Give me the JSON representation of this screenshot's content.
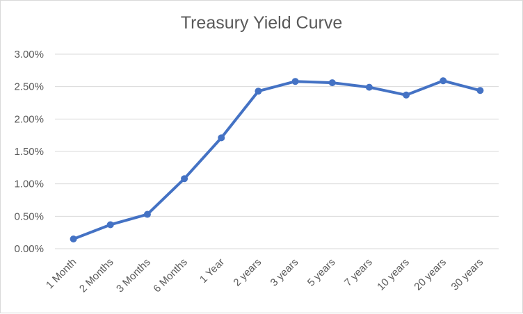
{
  "chart_data": {
    "type": "line",
    "title": "Treasury Yield Curve",
    "xlabel": "",
    "ylabel": "",
    "categories": [
      "1 Month",
      "2 Months",
      "3 Months",
      "6 Months",
      "1 Year",
      "2 years",
      "3 years",
      "5 years",
      "7 years",
      "10 years",
      "20 years",
      "30 years"
    ],
    "series": [
      {
        "values": [
          0.15,
          0.37,
          0.53,
          1.08,
          1.71,
          2.43,
          2.58,
          2.56,
          2.49,
          2.37,
          2.59,
          2.44
        ]
      }
    ],
    "ylim": [
      0,
      3
    ],
    "yticks": [
      "0.00%",
      "0.50%",
      "1.00%",
      "1.50%",
      "2.00%",
      "2.50%",
      "3.00%"
    ],
    "grid": "horizontal",
    "legend": "none",
    "colors": {
      "line": "#4472c4",
      "grid": "#d9d9d9",
      "text": "#595959"
    }
  }
}
